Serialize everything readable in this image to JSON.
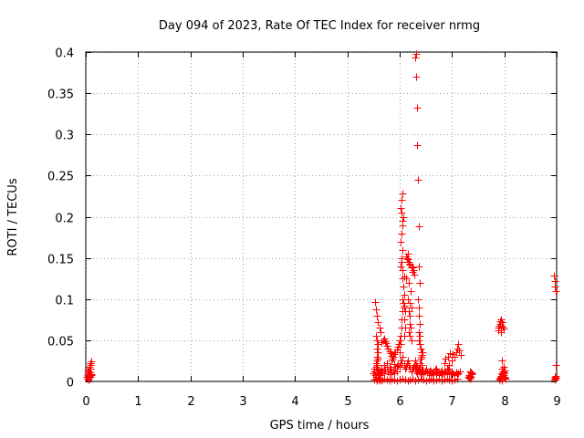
{
  "chart_data": {
    "type": "scatter",
    "title": "Day 094 of 2023, Rate Of TEC Index for receiver nrmg",
    "xlabel": "GPS time / hours",
    "ylabel": "ROTI / TECUs",
    "xlim": [
      0,
      9
    ],
    "ylim": [
      0,
      0.4
    ],
    "xticks": [
      0,
      1,
      2,
      3,
      4,
      5,
      6,
      7,
      8,
      9
    ],
    "yticks": [
      0,
      0.05,
      0.1,
      0.15,
      0.2,
      0.25,
      0.3,
      0.35,
      0.4
    ],
    "xtick_labels": [
      "0",
      "1",
      "2",
      "3",
      "4",
      "5",
      "6",
      "7",
      "8",
      "9"
    ],
    "ytick_labels": [
      "0",
      "0.05",
      "0.1",
      "0.15",
      "0.2",
      "0.25",
      "0.3",
      "0.35",
      "0.4"
    ],
    "grid": true,
    "marker": "+",
    "marker_color": "#ff0000",
    "series": [
      {
        "name": "ROTI",
        "x": [
          0.02,
          0.03,
          0.04,
          0.05,
          0.06,
          0.07,
          0.08,
          0.09,
          0.1,
          0.11,
          0.03,
          0.05,
          0.07,
          0.09,
          0.04,
          0.06,
          0.08,
          0.1,
          0.07,
          0.08,
          0.09,
          5.5,
          5.51,
          5.52,
          5.53,
          5.54,
          5.55,
          5.56,
          5.57,
          5.58,
          5.59,
          5.6,
          5.61,
          5.62,
          5.63,
          5.65,
          5.67,
          5.7,
          5.72,
          5.75,
          5.78,
          5.8,
          5.82,
          5.85,
          5.87,
          5.9,
          5.92,
          5.95,
          5.97,
          6.0,
          6.02,
          6.04,
          6.06,
          6.08,
          6.1,
          6.12,
          6.14,
          6.16,
          6.18,
          6.2,
          6.22,
          6.24,
          6.26,
          6.28,
          6.3,
          6.32,
          6.34,
          6.36,
          6.38,
          6.4,
          6.42,
          6.44,
          6.46,
          6.48,
          6.5,
          6.52,
          6.55,
          6.58,
          6.6,
          6.62,
          6.65,
          6.68,
          6.7,
          6.72,
          6.75,
          6.78,
          6.8,
          6.82,
          6.85,
          6.88,
          6.9,
          6.92,
          6.95,
          6.98,
          7.0,
          7.02,
          7.05,
          7.08,
          7.1,
          7.12,
          7.15,
          5.52,
          5.54,
          5.56,
          5.58,
          5.6,
          5.62,
          5.64,
          5.66,
          5.7,
          5.75,
          5.8,
          5.85,
          5.9,
          5.95,
          6.0,
          6.05,
          6.1,
          6.15,
          6.2,
          6.25,
          6.3,
          6.35,
          6.4,
          6.45,
          6.5,
          6.55,
          6.6,
          6.65,
          6.7,
          6.75,
          6.8,
          6.85,
          6.9,
          6.95,
          7.0,
          7.05,
          7.1,
          5.53,
          5.55,
          5.57,
          5.59,
          5.61,
          5.63,
          5.55,
          5.57,
          5.59,
          5.56,
          5.58,
          5.57,
          5.58,
          5.56,
          5.55,
          5.65,
          5.68,
          5.7,
          5.72,
          5.74,
          5.76,
          5.78,
          5.8,
          5.82,
          5.84,
          5.86,
          5.88,
          5.9,
          5.92,
          5.94,
          5.96,
          5.98,
          6.0,
          5.7,
          5.75,
          5.8,
          5.85,
          5.9,
          5.95,
          6.0,
          6.01,
          6.02,
          6.03,
          6.04,
          6.05,
          6.06,
          6.07,
          6.08,
          6.02,
          6.04,
          6.06,
          6.01,
          6.03,
          6.05,
          6.07,
          6.02,
          6.04,
          6.06,
          6.03,
          6.05,
          6.04,
          6.06,
          6.05,
          6.07,
          6.08,
          6.07,
          6.09,
          6.08,
          6.1,
          6.09,
          6.1,
          6.08,
          6.12,
          6.14,
          6.16,
          6.18,
          6.2,
          6.22,
          6.24,
          6.26,
          6.28,
          6.15,
          6.18,
          6.2,
          6.22,
          6.25,
          6.13,
          6.17,
          6.21,
          6.15,
          6.19,
          6.23,
          6.17,
          6.2,
          6.19,
          6.21,
          6.18,
          6.2,
          6.22,
          6.3,
          6.31,
          6.32,
          6.33,
          6.34,
          6.35,
          6.36,
          6.37,
          6.38,
          6.35,
          6.36,
          6.37,
          6.38,
          6.36,
          6.37,
          6.38,
          6.39,
          6.4,
          6.41,
          6.42,
          6.3,
          6.32,
          6.34,
          6.36,
          6.38,
          6.4,
          6.42,
          6.44,
          6.33,
          6.35,
          6.37,
          6.39,
          6.41,
          6.6,
          6.65,
          6.7,
          6.75,
          6.8,
          6.85,
          6.9,
          6.95,
          7.0,
          7.05,
          7.08,
          7.1,
          7.12,
          7.14,
          7.16,
          6.85,
          6.88,
          6.92,
          6.96,
          7.02,
          7.3,
          7.32,
          7.34,
          7.36,
          7.38,
          7.33,
          7.35,
          7.37,
          7.34,
          7.36,
          7.88,
          7.89,
          7.9,
          7.91,
          7.92,
          7.93,
          7.94,
          7.95,
          7.96,
          7.97,
          7.98,
          7.99,
          8.0,
          8.01,
          8.02,
          7.9,
          7.92,
          7.94,
          7.96,
          7.98,
          8.0,
          7.91,
          7.93,
          7.95,
          7.97,
          7.99,
          7.95,
          7.97,
          7.99,
          7.96,
          7.98,
          8.95,
          8.96,
          8.97,
          8.98,
          8.99,
          8.96,
          8.98,
          8.97,
          8.96,
          8.98,
          8.97
        ],
        "y": [
          0.005,
          0.008,
          0.01,
          0.006,
          0.012,
          0.015,
          0.02,
          0.022,
          0.024,
          0.009,
          0.003,
          0.004,
          0.007,
          0.011,
          0.013,
          0.002,
          0.006,
          0.008,
          0.018,
          0.016,
          0.005,
          0.01,
          0.012,
          0.015,
          0.008,
          0.018,
          0.006,
          0.02,
          0.012,
          0.01,
          0.014,
          0.009,
          0.011,
          0.013,
          0.008,
          0.016,
          0.012,
          0.01,
          0.014,
          0.018,
          0.012,
          0.009,
          0.015,
          0.011,
          0.013,
          0.01,
          0.016,
          0.012,
          0.02,
          0.018,
          0.025,
          0.022,
          0.03,
          0.02,
          0.015,
          0.018,
          0.022,
          0.025,
          0.02,
          0.016,
          0.012,
          0.015,
          0.018,
          0.02,
          0.015,
          0.012,
          0.01,
          0.014,
          0.012,
          0.011,
          0.009,
          0.013,
          0.01,
          0.012,
          0.015,
          0.011,
          0.01,
          0.013,
          0.012,
          0.009,
          0.011,
          0.014,
          0.01,
          0.012,
          0.008,
          0.011,
          0.013,
          0.01,
          0.009,
          0.012,
          0.01,
          0.014,
          0.011,
          0.009,
          0.012,
          0.01,
          0.008,
          0.011,
          0.009,
          0.01,
          0.012,
          0.002,
          0.003,
          0.001,
          0.004,
          0.002,
          0.003,
          0.001,
          0.002,
          0.003,
          0.002,
          0.001,
          0.003,
          0.002,
          0.001,
          0.002,
          0.003,
          0.002,
          0.001,
          0.002,
          0.003,
          0.001,
          0.002,
          0.003,
          0.002,
          0.001,
          0.002,
          0.003,
          0.001,
          0.002,
          0.003,
          0.001,
          0.002,
          0.003,
          0.002,
          0.001,
          0.002,
          0.003,
          0.096,
          0.088,
          0.08,
          0.072,
          0.065,
          0.06,
          0.055,
          0.05,
          0.045,
          0.04,
          0.035,
          0.03,
          0.028,
          0.025,
          0.022,
          0.048,
          0.05,
          0.052,
          0.049,
          0.046,
          0.043,
          0.04,
          0.037,
          0.034,
          0.031,
          0.028,
          0.03,
          0.033,
          0.036,
          0.039,
          0.042,
          0.045,
          0.05,
          0.02,
          0.022,
          0.018,
          0.025,
          0.021,
          0.019,
          0.035,
          0.045,
          0.055,
          0.065,
          0.075,
          0.085,
          0.1,
          0.115,
          0.127,
          0.14,
          0.15,
          0.16,
          0.17,
          0.18,
          0.19,
          0.2,
          0.21,
          0.22,
          0.228,
          0.205,
          0.195,
          0.145,
          0.135,
          0.125,
          0.115,
          0.105,
          0.095,
          0.092,
          0.09,
          0.085,
          0.075,
          0.065,
          0.055,
          0.152,
          0.15,
          0.148,
          0.145,
          0.143,
          0.14,
          0.138,
          0.135,
          0.13,
          0.155,
          0.145,
          0.142,
          0.138,
          0.133,
          0.125,
          0.12,
          0.11,
          0.1,
          0.095,
          0.09,
          0.085,
          0.08,
          0.07,
          0.065,
          0.06,
          0.055,
          0.05,
          0.393,
          0.398,
          0.37,
          0.332,
          0.287,
          0.245,
          0.188,
          0.14,
          0.12,
          0.1,
          0.09,
          0.08,
          0.07,
          0.06,
          0.05,
          0.045,
          0.055,
          0.04,
          0.035,
          0.03,
          0.025,
          0.02,
          0.018,
          0.015,
          0.022,
          0.028,
          0.032,
          0.035,
          0.012,
          0.014,
          0.016,
          0.018,
          0.02,
          0.008,
          0.012,
          0.015,
          0.01,
          0.009,
          0.012,
          0.015,
          0.02,
          0.025,
          0.03,
          0.035,
          0.04,
          0.045,
          0.038,
          0.032,
          0.022,
          0.028,
          0.03,
          0.034,
          0.033,
          0.005,
          0.008,
          0.012,
          0.006,
          0.01,
          0.004,
          0.007,
          0.009,
          0.003,
          0.011,
          0.062,
          0.065,
          0.068,
          0.07,
          0.073,
          0.075,
          0.06,
          0.025,
          0.01,
          0.012,
          0.005,
          0.008,
          0.006,
          0.004,
          0.003,
          0.002,
          0.004,
          0.007,
          0.009,
          0.011,
          0.013,
          0.003,
          0.005,
          0.001,
          0.008,
          0.01,
          0.072,
          0.066,
          0.064,
          0.015,
          0.018,
          0.128,
          0.122,
          0.115,
          0.11,
          0.02,
          0.005,
          0.004,
          0.006,
          0.003,
          0.007,
          0.002
        ]
      }
    ]
  }
}
